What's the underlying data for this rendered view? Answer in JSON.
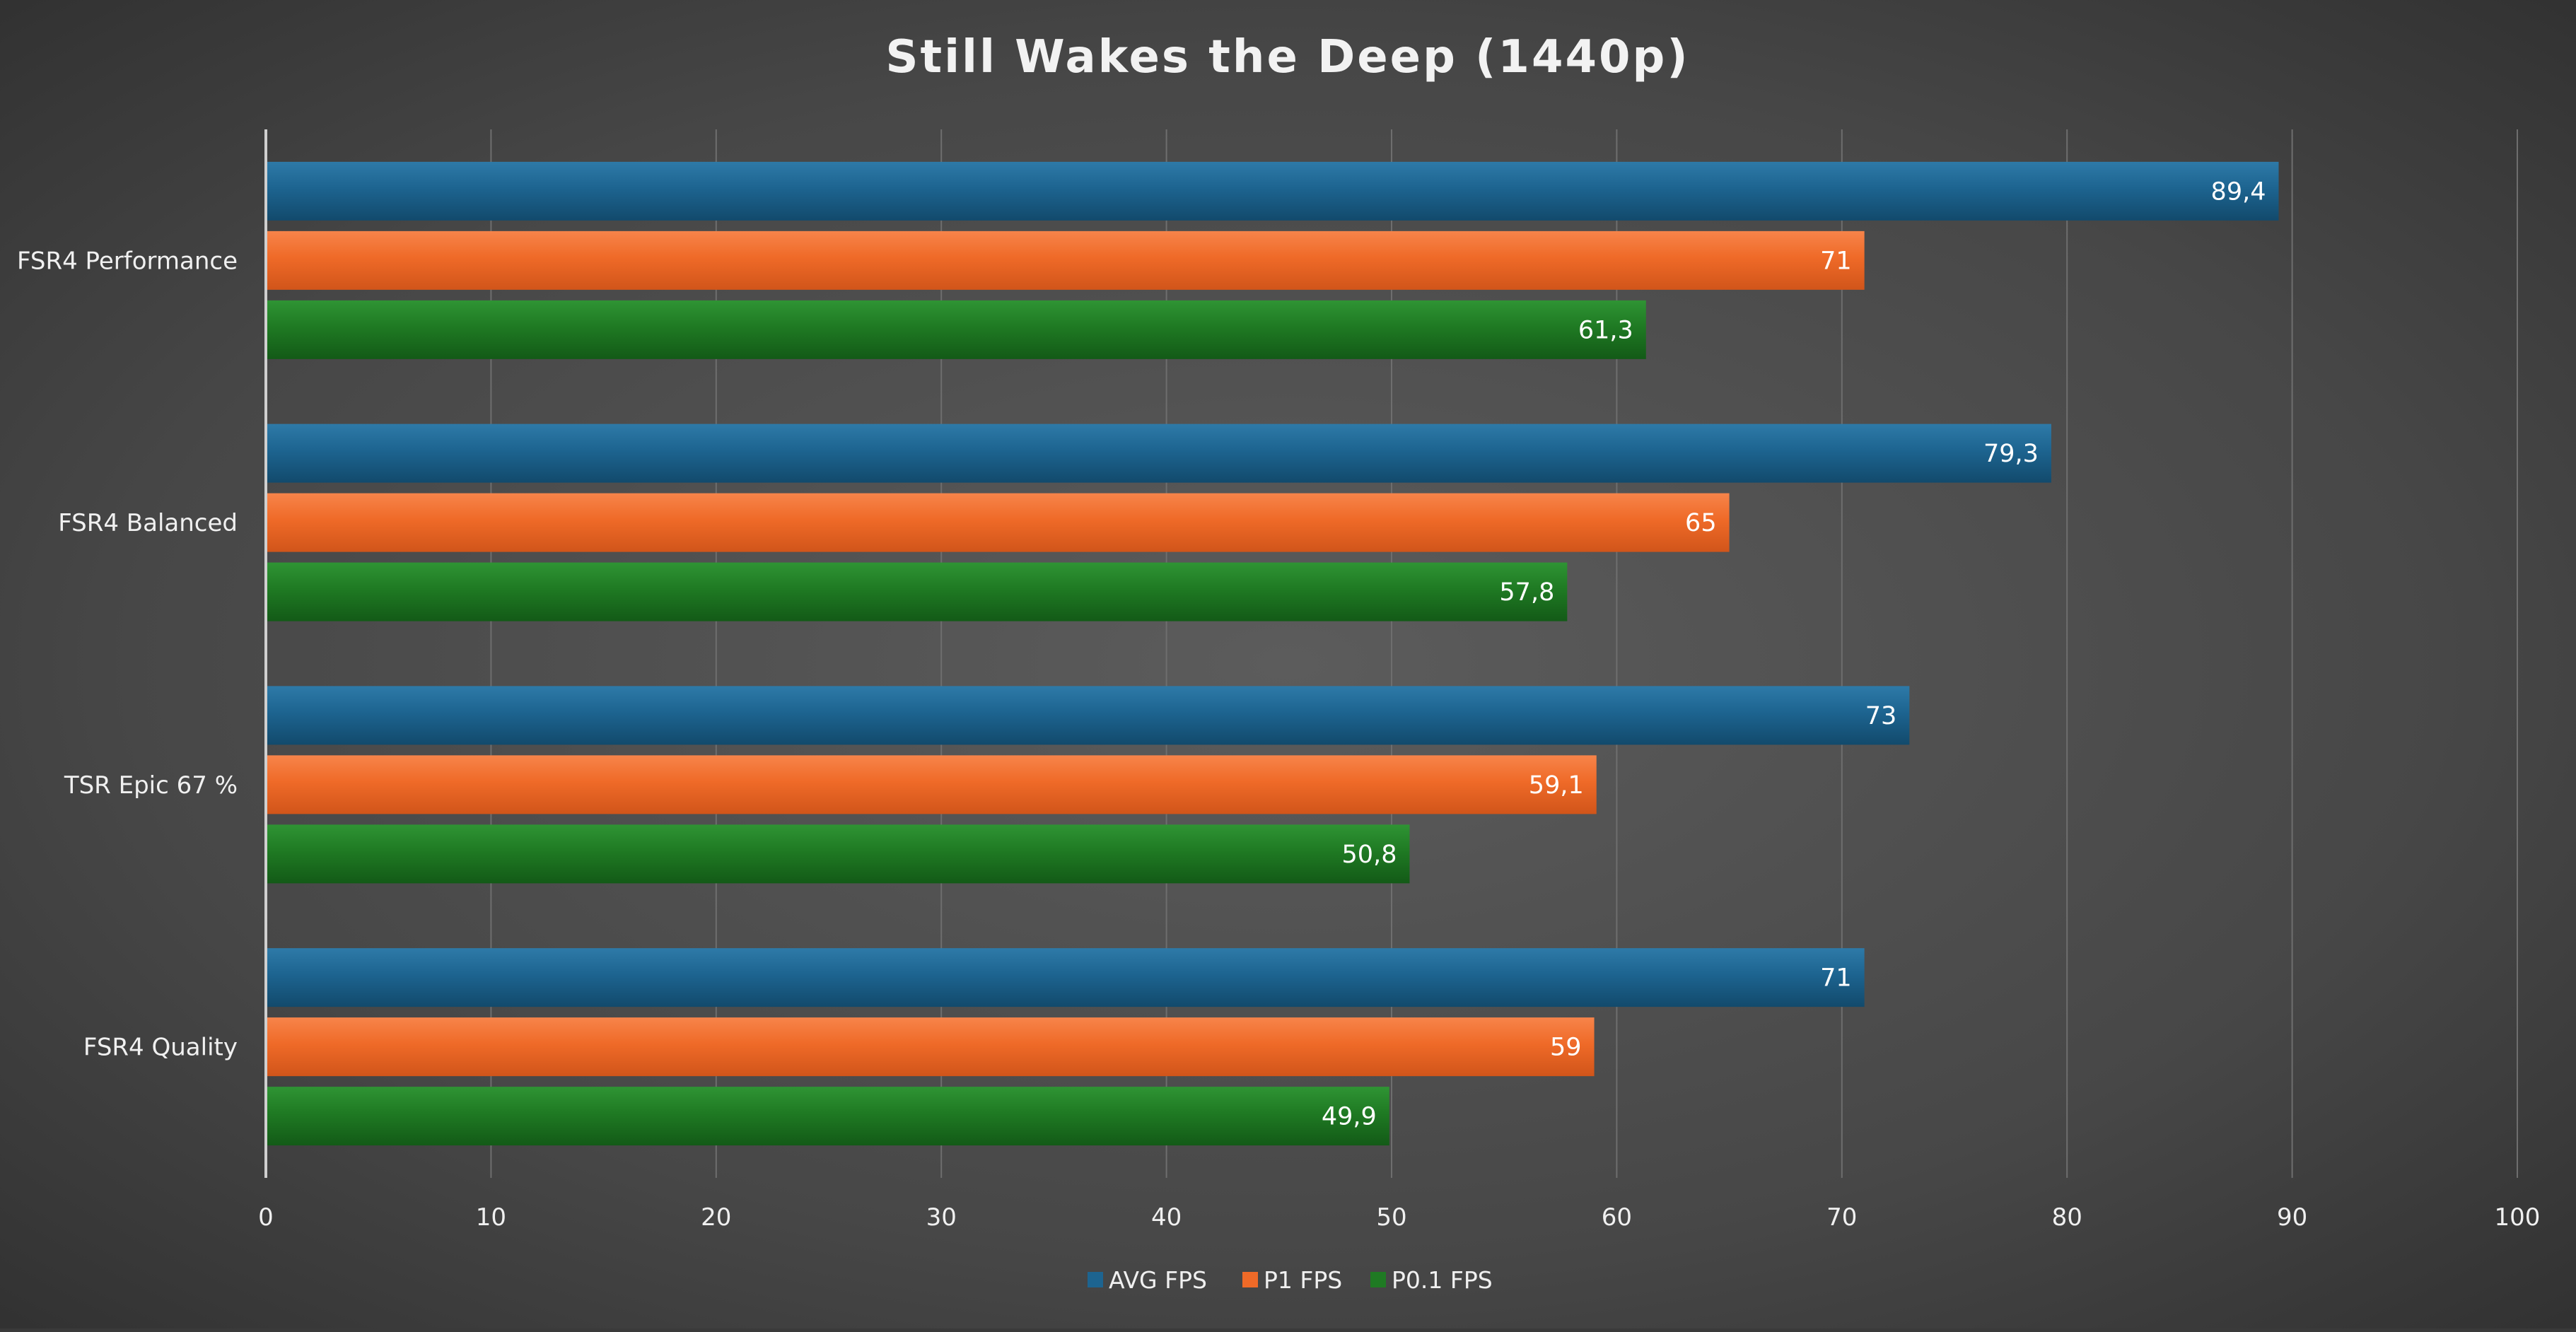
{
  "chart_data": {
    "type": "bar",
    "orientation": "horizontal",
    "title": "Still Wakes the Deep (1440p)",
    "categories": [
      "FSR4 Performance",
      "FSR4 Balanced",
      "TSR Epic 67 %",
      "FSR4 Quality"
    ],
    "series": [
      {
        "name": "AVG FPS",
        "color": "#1d6490",
        "values": [
          89.4,
          79.3,
          73,
          71
        ],
        "labels": [
          "89,4",
          "79,3",
          "73",
          "71"
        ]
      },
      {
        "name": "P1 FPS",
        "color": "#ef6a28",
        "values": [
          71,
          65,
          59.1,
          59
        ],
        "labels": [
          "71",
          "65",
          "59,1",
          "59"
        ]
      },
      {
        "name": "P0.1 FPS",
        "color": "#1f7a23",
        "values": [
          61.3,
          57.8,
          50.8,
          49.9
        ],
        "labels": [
          "61,3",
          "57,8",
          "50,8",
          "49,9"
        ]
      }
    ],
    "xlim": [
      0,
      100
    ],
    "xticks": [
      0,
      10,
      20,
      30,
      40,
      50,
      60,
      70,
      80,
      90,
      100
    ],
    "xtick_labels": [
      "0",
      "10",
      "20",
      "30",
      "40",
      "50",
      "60",
      "70",
      "80",
      "90",
      "100"
    ],
    "grid": true,
    "legend_position": "bottom"
  }
}
